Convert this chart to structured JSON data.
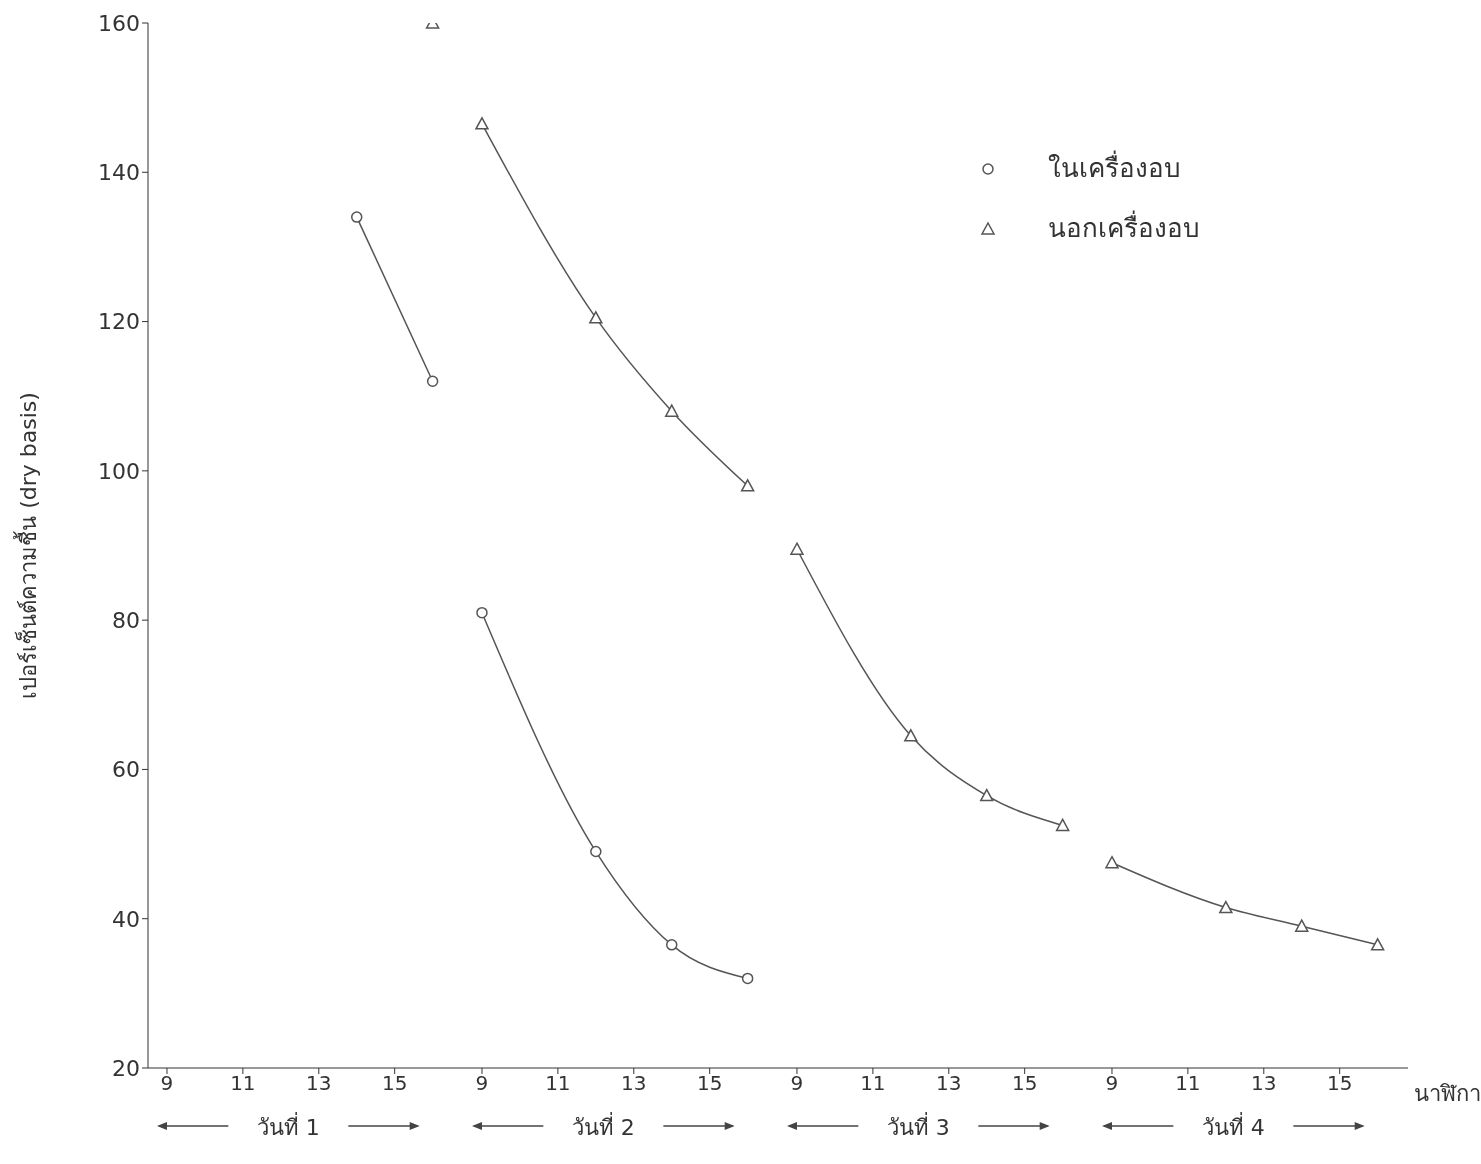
{
  "chart_data": [
    {
      "type": "line",
      "ylabel": "เปอร์เซ็นต์ความชื้น (dry basis)",
      "xlabel": "วันที่ 1",
      "xlim": [
        8.5,
        16.8
      ],
      "xticks": [
        9,
        11,
        13,
        15
      ],
      "ylim": [
        20,
        160
      ],
      "yticks": [
        20,
        40,
        60,
        80,
        100,
        120,
        140,
        160
      ],
      "series": [
        {
          "color": "#555555",
          "marker": "circle",
          "x": [
            14,
            16
          ],
          "values": [
            134,
            112
          ]
        },
        {
          "color": "#555555",
          "marker": "triangle",
          "x": [
            16
          ],
          "values": [
            160
          ]
        }
      ]
    },
    {
      "type": "line",
      "xlabel": "วันที่ 2",
      "xlim": [
        8.5,
        16.8
      ],
      "xticks": [
        9,
        11,
        13,
        15
      ],
      "ylim": [
        20,
        160
      ],
      "yticks": [
        20,
        40,
        60,
        80,
        100,
        120,
        140,
        160
      ],
      "tick_labels": "x",
      "legend": "right",
      "series": [
        {
          "name": "ในเครื่องอบ",
          "color": "#555555",
          "marker": "circle",
          "x": [
            9,
            12,
            14,
            16
          ],
          "values": [
            81,
            49,
            36.5,
            32
          ]
        },
        {
          "name": "นอกเครื่องอบ",
          "color": "#555555",
          "marker": "triangle",
          "x": [
            9,
            12,
            14,
            16
          ],
          "values": [
            146.5,
            120.5,
            108,
            98
          ]
        }
      ]
    },
    {
      "type": "line",
      "xlabel": "วันที่ 3",
      "xlim": [
        8.5,
        16.8
      ],
      "xticks": [
        9,
        11,
        13,
        15
      ],
      "ylim": [
        20,
        160
      ],
      "yticks": [
        20,
        40,
        60,
        80,
        100,
        120,
        140,
        160
      ],
      "tick_labels": "x",
      "series": [
        {
          "color": "#555555",
          "marker": "triangle",
          "x": [
            9,
            12,
            14,
            16
          ],
          "values": [
            89.5,
            64.5,
            56.5,
            52.5
          ]
        }
      ]
    },
    {
      "type": "line",
      "xlabel": "วันที่ 4",
      "xlim": [
        8.5,
        16.8
      ],
      "xticks": [
        9,
        11,
        13,
        15
      ],
      "ylim": [
        20,
        160
      ],
      "yticks": [
        20,
        40,
        60,
        80,
        100,
        120,
        140,
        160
      ],
      "tick_labels": "x",
      "annotations": [
        "นาฬิกา"
      ],
      "series": [
        {
          "color": "#555555",
          "marker": "triangle",
          "x": [
            9,
            12,
            14,
            16
          ],
          "values": [
            47.5,
            41.5,
            39,
            36.5
          ]
        }
      ]
    }
  ]
}
